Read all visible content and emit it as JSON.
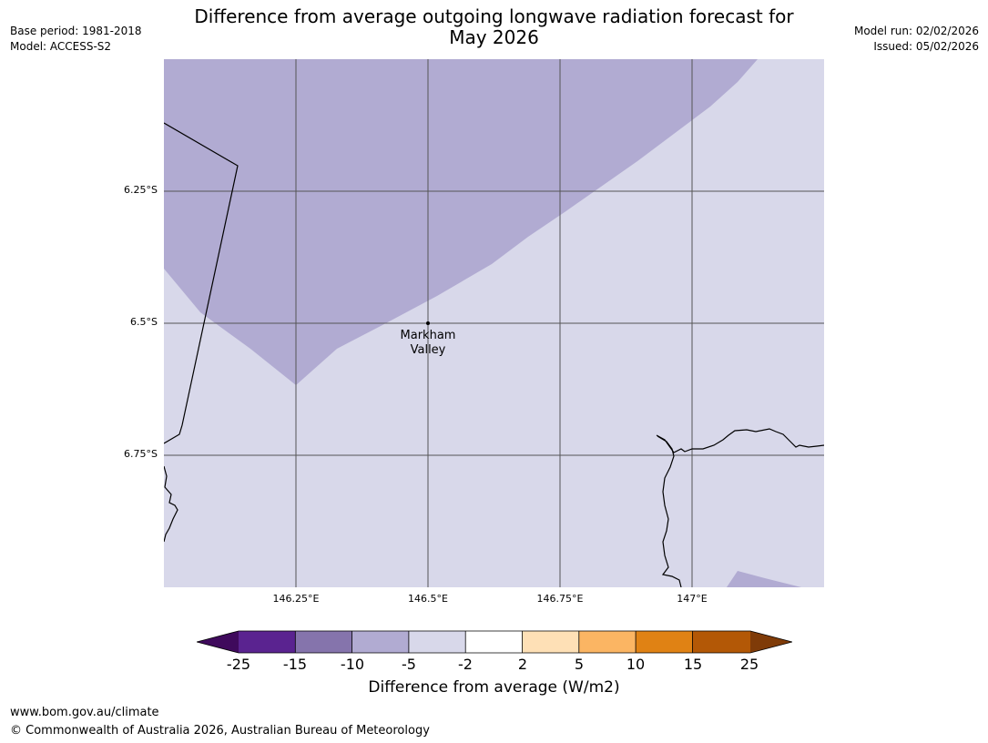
{
  "header": {
    "base_period": "Base period: 1981-2018",
    "model": "Model: ACCESS-S2",
    "model_run": "Model run: 02/02/2026",
    "issued": "Issued: 05/02/2026",
    "title_line1": "Difference from average outgoing longwave radiation forecast for",
    "title_line2": "May 2026"
  },
  "map": {
    "lat_labels": [
      "6.25°S",
      "6.5°S",
      "6.75°S"
    ],
    "lon_labels": [
      "146.25°E",
      "146.5°E",
      "146.75°E",
      "147°E"
    ],
    "location": {
      "line1": "Markham",
      "line2": "Valley",
      "lat": -6.5,
      "lon": 146.5
    },
    "colors": {
      "light": "#d8d8ea",
      "medium": "#b1abd2",
      "grid": "#555555",
      "coast": "#000000"
    }
  },
  "colorbar": {
    "ticks": [
      "-25",
      "-15",
      "-10",
      "-5",
      "-2",
      "2",
      "5",
      "10",
      "15",
      "25"
    ],
    "colors": [
      "#3f0a5c",
      "#5a2390",
      "#8574ac",
      "#b1abd2",
      "#d8d8ea",
      "#ffffff",
      "#fee0b6",
      "#fbb563",
      "#e08214",
      "#b35806",
      "#7f3b08"
    ],
    "label": "Difference from average (W/m2)"
  },
  "footer": {
    "url": "www.bom.gov.au/climate",
    "copyright": "© Commonwealth of Australia 2026, Australian Bureau of Meteorology"
  }
}
